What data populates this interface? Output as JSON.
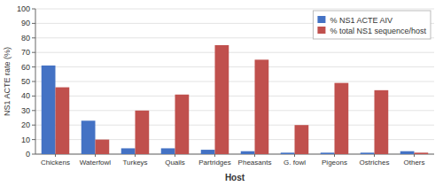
{
  "chart_data": {
    "type": "bar",
    "categories": [
      "Chickens",
      "Waterfowl",
      "Turkeys",
      "Quails",
      "Partridges",
      "Pheasants",
      "G. fowl",
      "Pigeons",
      "Ostriches",
      "Others"
    ],
    "series": [
      {
        "name": "% NS1 ACTE AIV",
        "color": "#4472C4",
        "values": [
          61,
          23,
          4,
          4,
          3,
          2,
          1,
          1,
          1,
          2
        ]
      },
      {
        "name": "% total NS1 sequence/host",
        "color": "#C0504D",
        "values": [
          46,
          10,
          30,
          41,
          75,
          65,
          20,
          49,
          44,
          1
        ]
      }
    ],
    "xlabel": "Host",
    "ylabel": "NS1 ACTE rate (%)",
    "ylim": [
      0,
      100
    ],
    "yticks": [
      0,
      10,
      20,
      30,
      40,
      50,
      60,
      70,
      80,
      90,
      100
    ],
    "grid": true,
    "legend": "upper right"
  }
}
